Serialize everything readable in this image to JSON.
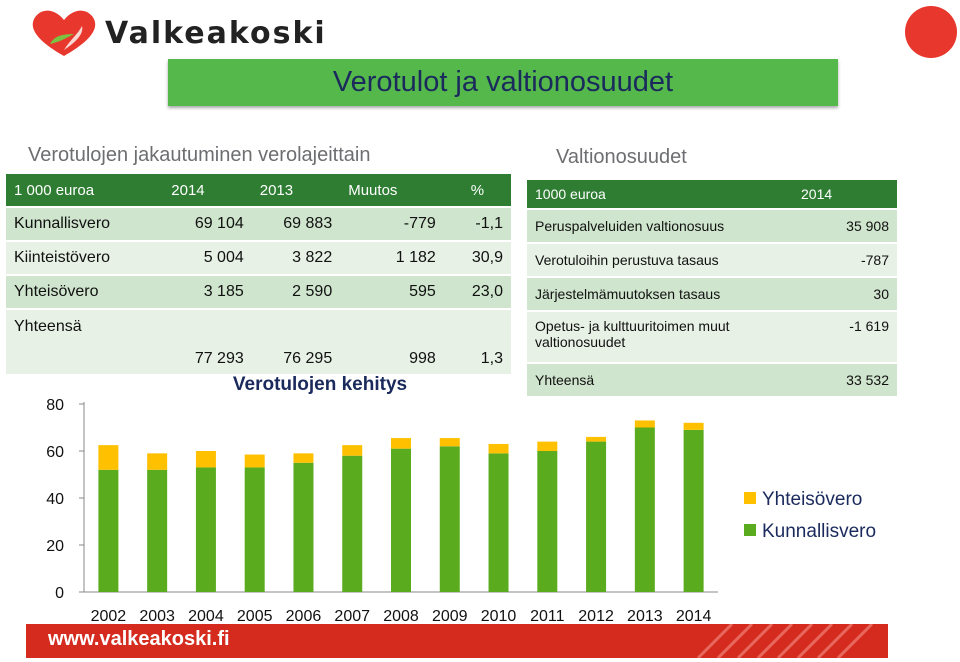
{
  "brand": {
    "name": "Valkeakoski",
    "footer_url": "www.valkeakoski.fi",
    "colors": {
      "green": "#55b84b",
      "dark_green": "#2e7d32",
      "red": "#d52b1e"
    }
  },
  "slide_title": "Verotulot ja valtionosuudet",
  "left_heading": "Verotulojen jakautuminen verolajeittain",
  "right_heading": "Valtionosuudet",
  "tax_table": {
    "headers": [
      "1 000 euroa",
      "2014",
      "2013",
      "Muutos",
      "%"
    ],
    "rows": [
      [
        "Kunnallisvero",
        "69 104",
        "69 883",
        "-779",
        "-1,1"
      ],
      [
        "Kiinteistövero",
        "5 004",
        "3 822",
        "1 182",
        "30,9"
      ],
      [
        "Yhteisövero",
        "3 185",
        "2 590",
        "595",
        "23,0"
      ],
      [
        "Yhteensä",
        "77 293",
        "76 295",
        "998",
        "1,3"
      ]
    ]
  },
  "grant_table": {
    "headers": [
      "1000 euroa",
      "2014"
    ],
    "rows": [
      [
        "Peruspalveluiden valtionosuus",
        "35 908"
      ],
      [
        "Verotuloihin perustuva  tasaus",
        "-787"
      ],
      [
        "Järjestelmämuutoksen tasaus",
        "30"
      ],
      [
        "Opetus- ja kulttuuritoimen muut valtionosuudet",
        "-1 619"
      ],
      [
        "Yhteensä",
        "33 532"
      ]
    ]
  },
  "chart_data": {
    "type": "bar",
    "stacked": true,
    "title": "Verotulojen kehitys",
    "categories": [
      "2002",
      "2003",
      "2004",
      "2005",
      "2006",
      "2007",
      "2008",
      "2009",
      "2010",
      "2011",
      "2012",
      "2013",
      "2014"
    ],
    "series": [
      {
        "name": "Kunnallisvero",
        "color": "#5aac1e",
        "values": [
          52,
          52,
          53,
          53,
          55,
          58,
          61,
          62,
          59,
          60,
          64,
          70,
          69
        ]
      },
      {
        "name": "Yhteisövero",
        "color": "#ffc000",
        "values": [
          10.5,
          7,
          7,
          5.5,
          4,
          4.5,
          4.5,
          3.5,
          4,
          4,
          2,
          3,
          3
        ]
      }
    ],
    "yticks": [
      0,
      20,
      40,
      60,
      80
    ],
    "ylim": [
      0,
      80
    ],
    "legend_position": "right",
    "legend_order": [
      "Yhteisövero",
      "Kunnallisvero"
    ]
  }
}
